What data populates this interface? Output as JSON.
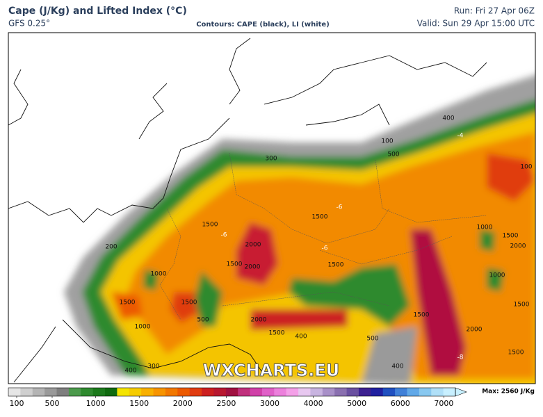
{
  "header": {
    "title": "Cape (J/Kg) and Lifted Index (°C)",
    "model": "GFS 0.25°",
    "contours": "Contours: CAPE (black), LI (white)",
    "run": "Run: Fri 27 Apr 06Z",
    "valid": "Valid: Sun 29 Apr 15:00 UTC"
  },
  "watermark": "WXCHARTS.EU",
  "contour_labels": [
    "400",
    "100",
    "500",
    "300",
    "100",
    "1500",
    "1500",
    "1500",
    "200",
    "2000",
    "1500",
    "2000",
    "1000",
    "1500",
    "1500",
    "1000",
    "500",
    "2000",
    "1500",
    "400",
    "500",
    "1500",
    "1000",
    "1500",
    "2000",
    "1000",
    "1500",
    "2000",
    "1500",
    "300",
    "400",
    "400",
    "-6",
    "-6",
    "-6",
    "-4",
    "-8"
  ],
  "colorbar": {
    "ticks": [
      100,
      500,
      1000,
      1500,
      2000,
      2500,
      3000,
      4000,
      5000,
      6000,
      7000
    ],
    "max_label": "Max: 2560 J/Kg",
    "colors": [
      "#e6e6e6",
      "#cfcfcf",
      "#b4b4b4",
      "#9a9a9a",
      "#7f7f7f",
      "#4c9a4c",
      "#2f8a2f",
      "#1c7a1c",
      "#0f6a0f",
      "#f4e400",
      "#f6cc00",
      "#f8b000",
      "#f79400",
      "#f27800",
      "#ec5a00",
      "#e03c10",
      "#cc2020",
      "#b81830",
      "#a01040",
      "#c0307c",
      "#d040a8",
      "#e060c8",
      "#ec80dc",
      "#f4a0e8",
      "#e8c8f0",
      "#c8b4e0",
      "#a890c8",
      "#8a70b0",
      "#6a50a0",
      "#3c2090",
      "#2020a0",
      "#2050c0",
      "#4080d8",
      "#60a8e8",
      "#88c8f0",
      "#b0e0f8",
      "#c8f0ff"
    ]
  }
}
